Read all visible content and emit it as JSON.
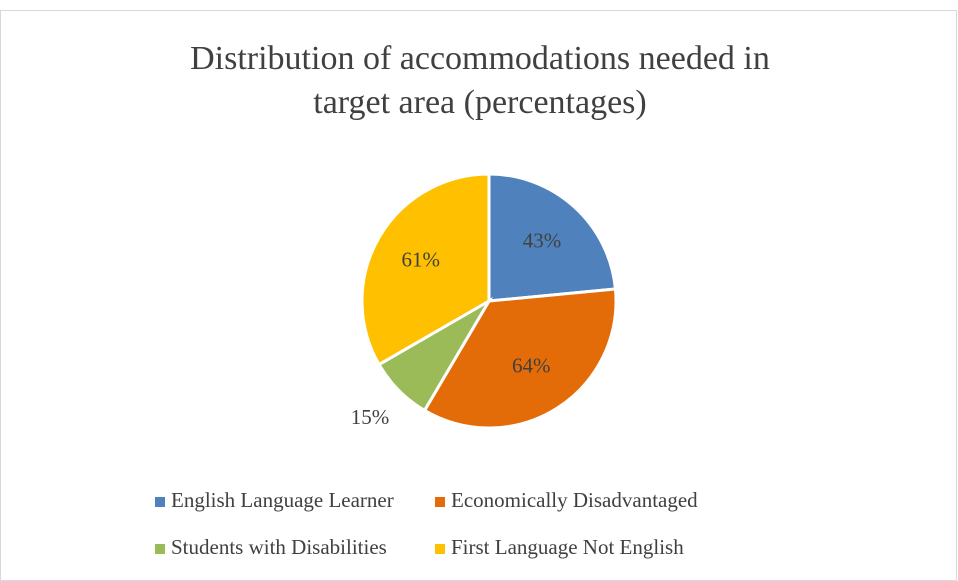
{
  "chart_data": {
    "type": "pie",
    "title": "Distribution of accommodations needed in target area (percentages)",
    "categories": [
      "English Language Learner",
      "Economically Disadvantaged",
      "Students with Disabilities",
      "First Language Not English"
    ],
    "values": [
      43,
      64,
      15,
      61
    ],
    "value_labels": [
      "43%",
      "64%",
      "15%",
      "61%"
    ],
    "colors": [
      "#4f81bd",
      "#e36c09",
      "#9bbb59",
      "#ffc000"
    ],
    "legend": "bottom"
  }
}
